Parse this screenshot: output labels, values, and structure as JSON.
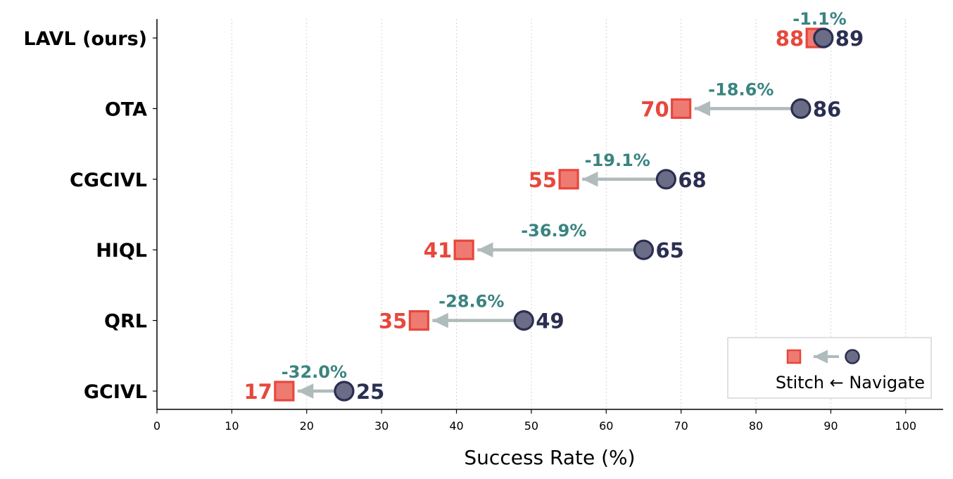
{
  "chart_data": {
    "type": "dumbbell",
    "xlabel": "Success Rate (%)",
    "xlim": [
      0,
      105
    ],
    "xticks": [
      0,
      10,
      20,
      30,
      40,
      50,
      60,
      70,
      80,
      90,
      100
    ],
    "grid": "vertical dotted",
    "categories": [
      "LAVL (ours)",
      "OTA",
      "CGCIVL",
      "HIQL",
      "QRL",
      "GCIVL"
    ],
    "series": [
      {
        "name": "Stitch",
        "values": [
          88,
          70,
          55,
          41,
          35,
          17
        ]
      },
      {
        "name": "Navigate",
        "values": [
          89,
          86,
          68,
          65,
          49,
          25
        ]
      }
    ],
    "annotations": [
      "-1.1%",
      "-18.6%",
      "-19.1%",
      "-36.9%",
      "-28.6%",
      "-32.0%"
    ],
    "legend": {
      "label": "Stitch ← Navigate",
      "placement": "lower-right"
    },
    "colors": {
      "stitch": "#e8473c",
      "stitch_fill": "#ee7b72",
      "navigate": "#2a2f52",
      "navigate_fill": "#6b6d86",
      "arrow": "#b0bbbb",
      "pct": "#3a8480"
    }
  }
}
